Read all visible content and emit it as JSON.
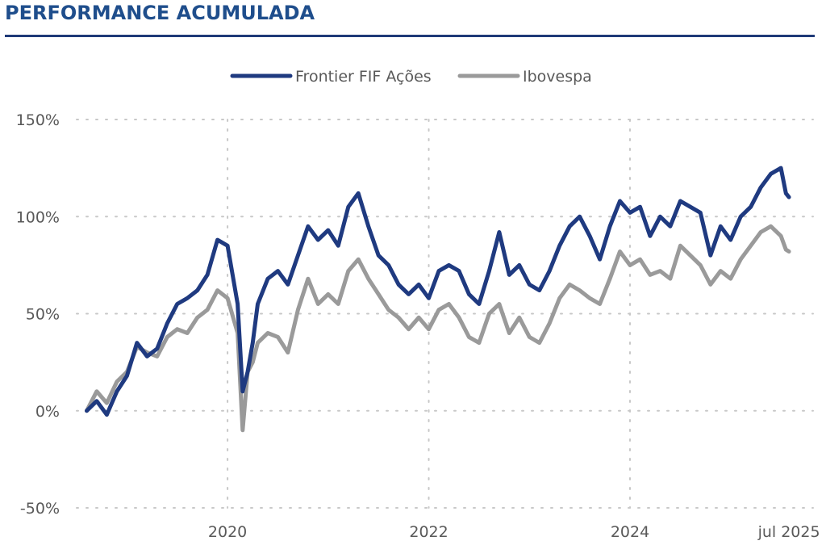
{
  "header": {
    "title": "PERFORMANCE ACUMULADA"
  },
  "colors": {
    "fund": "#1f3a80",
    "index": "#9a9a9a",
    "title": "#1f4e8c",
    "rule": "#1f3a78",
    "grid": "#c8c8c8"
  },
  "chart_data": {
    "type": "line",
    "title": "PERFORMANCE ACUMULADA",
    "xlabel": "",
    "ylabel": "",
    "x_range": [
      2018.5,
      2025.82
    ],
    "ylim": [
      -50,
      150
    ],
    "y_ticks": [
      -50,
      0,
      50,
      100,
      150
    ],
    "y_tick_labels": [
      "-50%",
      "0%",
      "50%",
      "100%",
      "150%"
    ],
    "x_ticks": [
      2020,
      2022,
      2024,
      2025.58
    ],
    "x_tick_labels": [
      "2020",
      "2022",
      "2024",
      "jul 2025"
    ],
    "x_gridlines": [
      2020,
      2022,
      2024
    ],
    "grid": true,
    "legend": {
      "position": "top-center"
    },
    "series": [
      {
        "name": "Frontier FIF Ações",
        "x": [
          2018.6,
          2018.7,
          2018.8,
          2018.9,
          2019.0,
          2019.1,
          2019.2,
          2019.3,
          2019.4,
          2019.5,
          2019.6,
          2019.7,
          2019.8,
          2019.9,
          2020.0,
          2020.1,
          2020.15,
          2020.2,
          2020.25,
          2020.3,
          2020.4,
          2020.5,
          2020.6,
          2020.7,
          2020.8,
          2020.9,
          2021.0,
          2021.1,
          2021.2,
          2021.3,
          2021.4,
          2021.5,
          2021.6,
          2021.7,
          2021.8,
          2021.9,
          2022.0,
          2022.1,
          2022.2,
          2022.3,
          2022.4,
          2022.5,
          2022.6,
          2022.7,
          2022.8,
          2022.9,
          2023.0,
          2023.1,
          2023.2,
          2023.3,
          2023.4,
          2023.5,
          2023.6,
          2023.7,
          2023.8,
          2023.9,
          2024.0,
          2024.1,
          2024.2,
          2024.3,
          2024.4,
          2024.5,
          2024.6,
          2024.7,
          2024.8,
          2024.9,
          2025.0,
          2025.1,
          2025.2,
          2025.3,
          2025.4,
          2025.5,
          2025.55,
          2025.58
        ],
        "values": [
          0,
          5,
          -2,
          10,
          18,
          35,
          28,
          32,
          45,
          55,
          58,
          62,
          70,
          88,
          85,
          55,
          10,
          20,
          35,
          55,
          68,
          72,
          65,
          80,
          95,
          88,
          93,
          85,
          105,
          112,
          95,
          80,
          75,
          65,
          60,
          65,
          58,
          72,
          75,
          72,
          60,
          55,
          72,
          92,
          70,
          75,
          65,
          62,
          72,
          85,
          95,
          100,
          90,
          78,
          95,
          108,
          102,
          105,
          90,
          100,
          95,
          108,
          105,
          102,
          80,
          95,
          88,
          100,
          105,
          115,
          122,
          125,
          112,
          110
        ]
      },
      {
        "name": "Ibovespa",
        "x": [
          2018.6,
          2018.7,
          2018.8,
          2018.9,
          2019.0,
          2019.1,
          2019.2,
          2019.3,
          2019.4,
          2019.5,
          2019.6,
          2019.7,
          2019.8,
          2019.9,
          2020.0,
          2020.1,
          2020.15,
          2020.2,
          2020.25,
          2020.3,
          2020.4,
          2020.5,
          2020.6,
          2020.7,
          2020.8,
          2020.9,
          2021.0,
          2021.1,
          2021.2,
          2021.3,
          2021.4,
          2021.5,
          2021.6,
          2021.7,
          2021.8,
          2021.9,
          2022.0,
          2022.1,
          2022.2,
          2022.3,
          2022.4,
          2022.5,
          2022.6,
          2022.7,
          2022.8,
          2022.9,
          2023.0,
          2023.1,
          2023.2,
          2023.3,
          2023.4,
          2023.5,
          2023.6,
          2023.7,
          2023.8,
          2023.9,
          2024.0,
          2024.1,
          2024.2,
          2024.3,
          2024.4,
          2024.5,
          2024.6,
          2024.7,
          2024.8,
          2024.9,
          2025.0,
          2025.1,
          2025.2,
          2025.3,
          2025.4,
          2025.5,
          2025.55,
          2025.58
        ],
        "values": [
          0,
          10,
          4,
          15,
          20,
          33,
          30,
          28,
          38,
          42,
          40,
          48,
          52,
          62,
          58,
          40,
          -10,
          20,
          25,
          35,
          40,
          38,
          30,
          52,
          68,
          55,
          60,
          55,
          72,
          78,
          68,
          60,
          52,
          48,
          42,
          48,
          42,
          52,
          55,
          48,
          38,
          35,
          50,
          55,
          40,
          48,
          38,
          35,
          45,
          58,
          65,
          62,
          58,
          55,
          68,
          82,
          75,
          78,
          70,
          72,
          68,
          85,
          80,
          75,
          65,
          72,
          68,
          78,
          85,
          92,
          95,
          90,
          83,
          82
        ]
      }
    ]
  }
}
